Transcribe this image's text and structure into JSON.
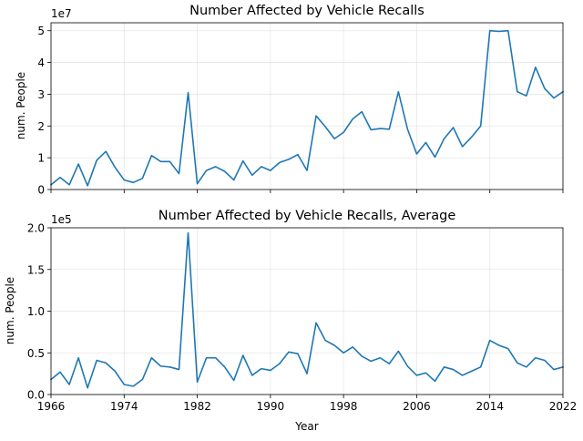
{
  "chart_data": [
    {
      "type": "line",
      "title": "Number Affected by Vehicle Recalls",
      "ylabel": "num. People",
      "xlabel": "",
      "offset_label": "1e7",
      "xlim": [
        1966,
        2022
      ],
      "ylim": [
        0,
        5.25
      ],
      "xticks": [
        1966,
        1974,
        1982,
        1990,
        1998,
        2006,
        2014,
        2022
      ],
      "show_xtick_labels": false,
      "yticks": [
        0,
        1,
        2,
        3,
        4,
        5
      ],
      "ytick_labels": [
        "0",
        "1",
        "2",
        "3",
        "4",
        "5"
      ],
      "grid": true,
      "color": "#1f77b4",
      "x": [
        1966,
        1967,
        1968,
        1969,
        1970,
        1971,
        1972,
        1973,
        1974,
        1975,
        1976,
        1977,
        1978,
        1979,
        1980,
        1981,
        1982,
        1983,
        1984,
        1985,
        1986,
        1987,
        1988,
        1989,
        1990,
        1991,
        1992,
        1993,
        1994,
        1995,
        1996,
        1997,
        1998,
        1999,
        2000,
        2001,
        2002,
        2003,
        2004,
        2005,
        2006,
        2007,
        2008,
        2009,
        2010,
        2011,
        2012,
        2013,
        2014,
        2015,
        2016,
        2017,
        2018,
        2019,
        2020,
        2021,
        2022
      ],
      "series": [
        {
          "values": [
            0.15,
            0.38,
            0.15,
            0.8,
            0.12,
            0.92,
            1.2,
            0.7,
            0.3,
            0.22,
            0.35,
            1.07,
            0.88,
            0.88,
            0.5,
            3.05,
            0.18,
            0.6,
            0.72,
            0.57,
            0.3,
            0.9,
            0.45,
            0.72,
            0.6,
            0.85,
            0.95,
            1.1,
            0.6,
            2.32,
            1.98,
            1.6,
            1.8,
            2.22,
            2.45,
            1.88,
            1.92,
            1.9,
            3.08,
            1.9,
            1.12,
            1.48,
            1.02,
            1.6,
            1.95,
            1.35,
            1.65,
            2.0,
            5.0,
            4.98,
            5.0,
            3.08,
            2.95,
            3.85,
            3.18,
            2.88,
            3.08
          ]
        }
      ]
    },
    {
      "type": "line",
      "title": "Number Affected by Vehicle Recalls, Average",
      "ylabel": "num. People",
      "xlabel": "Year",
      "offset_label": "1e5",
      "xlim": [
        1966,
        2022
      ],
      "ylim": [
        0,
        2.0
      ],
      "xticks": [
        1966,
        1974,
        1982,
        1990,
        1998,
        2006,
        2014,
        2022
      ],
      "xtick_labels": [
        "1966",
        "1974",
        "1982",
        "1990",
        "1998",
        "2006",
        "2014",
        "2022"
      ],
      "show_xtick_labels": true,
      "yticks": [
        0,
        0.5,
        1.0,
        1.5,
        2.0
      ],
      "ytick_labels": [
        "0.0",
        "0.5",
        "1.0",
        "1.5",
        "2.0"
      ],
      "grid": true,
      "color": "#1f77b4",
      "x": [
        1966,
        1967,
        1968,
        1969,
        1970,
        1971,
        1972,
        1973,
        1974,
        1975,
        1976,
        1977,
        1978,
        1979,
        1980,
        1981,
        1982,
        1983,
        1984,
        1985,
        1986,
        1987,
        1988,
        1989,
        1990,
        1991,
        1992,
        1993,
        1994,
        1995,
        1996,
        1997,
        1998,
        1999,
        2000,
        2001,
        2002,
        2003,
        2004,
        2005,
        2006,
        2007,
        2008,
        2009,
        2010,
        2011,
        2012,
        2013,
        2014,
        2015,
        2016,
        2017,
        2018,
        2019,
        2020,
        2021,
        2022
      ],
      "series": [
        {
          "values": [
            0.18,
            0.27,
            0.12,
            0.44,
            0.08,
            0.41,
            0.38,
            0.28,
            0.12,
            0.1,
            0.18,
            0.44,
            0.34,
            0.33,
            0.3,
            1.94,
            0.15,
            0.44,
            0.44,
            0.33,
            0.17,
            0.47,
            0.23,
            0.31,
            0.29,
            0.37,
            0.51,
            0.49,
            0.25,
            0.86,
            0.65,
            0.59,
            0.5,
            0.57,
            0.46,
            0.4,
            0.44,
            0.37,
            0.52,
            0.34,
            0.23,
            0.26,
            0.16,
            0.33,
            0.3,
            0.23,
            0.28,
            0.33,
            0.65,
            0.59,
            0.55,
            0.38,
            0.33,
            0.44,
            0.41,
            0.3,
            0.33
          ]
        }
      ]
    }
  ]
}
